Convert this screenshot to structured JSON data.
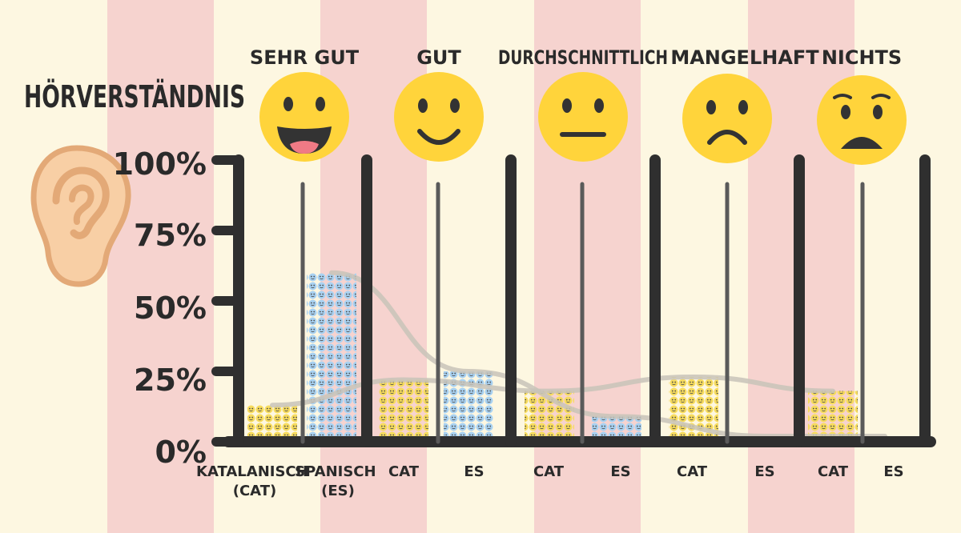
{
  "title": "Hörverständnis",
  "colors": {
    "background_light": "#fdf7e1",
    "background_stripe": "#f6d3cf",
    "axis": "#2f2f2f",
    "catalan": "#f7dc5e",
    "spanish": "#a9d2f2",
    "trend": "#c8c3b8",
    "emoji_face": "#ffd43b",
    "ear": "#f8cfa5",
    "ear_outline": "#e3a977"
  },
  "icons": {
    "ear": "ear-icon",
    "very_good": "laughing-face-icon",
    "good": "smiling-face-icon",
    "average": "neutral-face-icon",
    "poor": "frowning-face-icon",
    "none": "anguished-face-icon"
  },
  "chart_data": {
    "type": "bar",
    "title": "Hörverständnis",
    "categories": [
      "Sehr gut",
      "gut",
      "Durchschnittlich",
      "Mangelhaft",
      "Nichts"
    ],
    "group_labels": [
      [
        "Katalanisch (CAT)",
        "Spanisch (ES)"
      ],
      [
        "CAT",
        "ES"
      ],
      [
        "CAT",
        "ES"
      ],
      [
        "CAT",
        "ES"
      ],
      [
        "CAT",
        "ES"
      ]
    ],
    "series": [
      {
        "name": "Katalanisch (CAT)",
        "values": [
          13,
          22,
          18,
          23,
          18
        ]
      },
      {
        "name": "Spanisch (ES)",
        "values": [
          60,
          25,
          9,
          2,
          2
        ]
      }
    ],
    "yticks": [
      "0%",
      "25%",
      "50%",
      "75%",
      "100%"
    ],
    "ylim": [
      0,
      100
    ],
    "grid": false
  }
}
